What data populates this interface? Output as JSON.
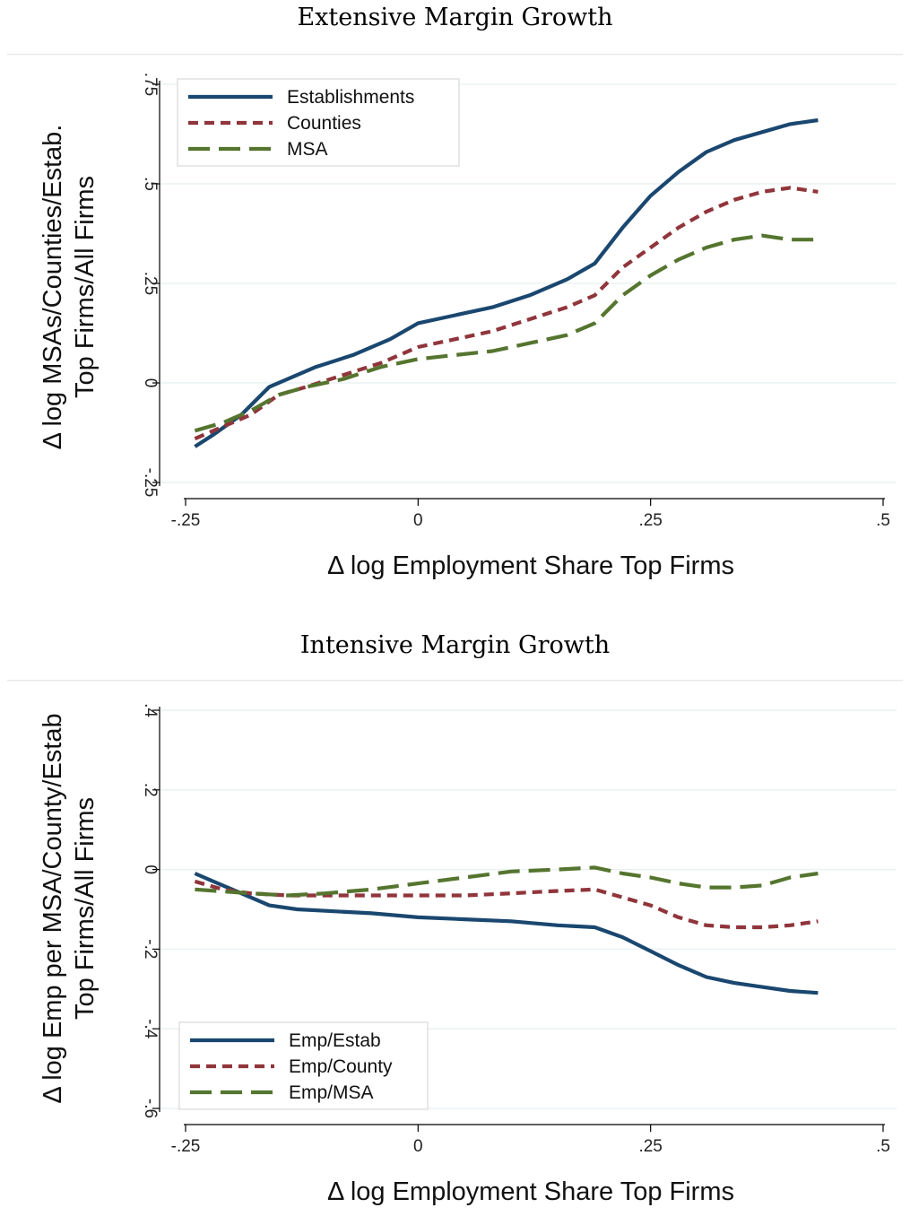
{
  "chart_data": [
    {
      "type": "line",
      "title": "Extensive Margin Growth",
      "xlabel": "Δ log Employment Share Top Firms",
      "ylabel_lines": [
        "Δ log MSAs/Counties/Estab.",
        "Top Firms/All Firms"
      ],
      "xlim": [
        -0.25,
        0.5
      ],
      "ylim": [
        -0.25,
        0.75
      ],
      "xticks": [
        -0.25,
        0,
        0.25,
        0.5
      ],
      "xtick_labels": [
        "-.25",
        "0",
        ".25",
        ".5"
      ],
      "yticks": [
        -0.25,
        0,
        0.25,
        0.5,
        0.75
      ],
      "ytick_labels": [
        "-.25",
        "0",
        ".25",
        ".5",
        ".75"
      ],
      "grid": true,
      "legend_position": "top-left",
      "series": [
        {
          "name": "Establishments",
          "color": "#1a476f",
          "dash": "solid",
          "points": [
            [
              -0.24,
              -0.16
            ],
            [
              -0.22,
              -0.13
            ],
            [
              -0.19,
              -0.08
            ],
            [
              -0.16,
              -0.01
            ],
            [
              -0.14,
              0.01
            ],
            [
              -0.11,
              0.04
            ],
            [
              -0.07,
              0.07
            ],
            [
              -0.03,
              0.11
            ],
            [
              0.0,
              0.15
            ],
            [
              0.04,
              0.17
            ],
            [
              0.08,
              0.19
            ],
            [
              0.12,
              0.22
            ],
            [
              0.16,
              0.26
            ],
            [
              0.19,
              0.3
            ],
            [
              0.22,
              0.39
            ],
            [
              0.25,
              0.47
            ],
            [
              0.28,
              0.53
            ],
            [
              0.31,
              0.58
            ],
            [
              0.34,
              0.61
            ],
            [
              0.37,
              0.63
            ],
            [
              0.4,
              0.65
            ],
            [
              0.43,
              0.66
            ]
          ]
        },
        {
          "name": "Counties",
          "color": "#90353b",
          "dash": "short",
          "points": [
            [
              -0.24,
              -0.14
            ],
            [
              -0.21,
              -0.11
            ],
            [
              -0.18,
              -0.08
            ],
            [
              -0.15,
              -0.03
            ],
            [
              -0.12,
              -0.01
            ],
            [
              -0.08,
              0.02
            ],
            [
              -0.04,
              0.05
            ],
            [
              0.0,
              0.09
            ],
            [
              0.04,
              0.11
            ],
            [
              0.08,
              0.13
            ],
            [
              0.12,
              0.16
            ],
            [
              0.16,
              0.19
            ],
            [
              0.19,
              0.22
            ],
            [
              0.22,
              0.29
            ],
            [
              0.25,
              0.34
            ],
            [
              0.28,
              0.39
            ],
            [
              0.31,
              0.43
            ],
            [
              0.34,
              0.46
            ],
            [
              0.37,
              0.48
            ],
            [
              0.4,
              0.49
            ],
            [
              0.43,
              0.48
            ]
          ]
        },
        {
          "name": "MSA",
          "color": "#55752f",
          "dash": "long",
          "points": [
            [
              -0.24,
              -0.12
            ],
            [
              -0.21,
              -0.1
            ],
            [
              -0.18,
              -0.07
            ],
            [
              -0.15,
              -0.03
            ],
            [
              -0.12,
              -0.01
            ],
            [
              -0.08,
              0.01
            ],
            [
              -0.04,
              0.04
            ],
            [
              0.0,
              0.06
            ],
            [
              0.04,
              0.07
            ],
            [
              0.08,
              0.08
            ],
            [
              0.12,
              0.1
            ],
            [
              0.16,
              0.12
            ],
            [
              0.19,
              0.15
            ],
            [
              0.22,
              0.22
            ],
            [
              0.25,
              0.27
            ],
            [
              0.28,
              0.31
            ],
            [
              0.31,
              0.34
            ],
            [
              0.34,
              0.36
            ],
            [
              0.37,
              0.37
            ],
            [
              0.4,
              0.36
            ],
            [
              0.43,
              0.36
            ]
          ]
        }
      ]
    },
    {
      "type": "line",
      "title": "Intensive Margin Growth",
      "xlabel": "Δ log Employment Share Top Firms",
      "ylabel_lines": [
        "Δ log Emp per MSA/County/Estab",
        "Top Firms/All Firms"
      ],
      "xlim": [
        -0.25,
        0.5
      ],
      "ylim": [
        -0.6,
        0.4
      ],
      "xticks": [
        -0.25,
        0,
        0.25,
        0.5
      ],
      "xtick_labels": [
        "-.25",
        "0",
        ".25",
        ".5"
      ],
      "yticks": [
        -0.6,
        -0.4,
        -0.2,
        0,
        0.2,
        0.4
      ],
      "ytick_labels": [
        "-.6",
        "-.4",
        "-.2",
        "0",
        ".2",
        ".4"
      ],
      "grid": true,
      "legend_position": "bottom-left",
      "series": [
        {
          "name": "Emp/Estab",
          "color": "#1a476f",
          "dash": "solid",
          "points": [
            [
              -0.24,
              -0.01
            ],
            [
              -0.22,
              -0.03
            ],
            [
              -0.19,
              -0.06
            ],
            [
              -0.16,
              -0.09
            ],
            [
              -0.13,
              -0.1
            ],
            [
              -0.09,
              -0.105
            ],
            [
              -0.05,
              -0.11
            ],
            [
              0.0,
              -0.12
            ],
            [
              0.05,
              -0.125
            ],
            [
              0.1,
              -0.13
            ],
            [
              0.15,
              -0.14
            ],
            [
              0.19,
              -0.145
            ],
            [
              0.22,
              -0.17
            ],
            [
              0.25,
              -0.205
            ],
            [
              0.28,
              -0.24
            ],
            [
              0.31,
              -0.27
            ],
            [
              0.34,
              -0.285
            ],
            [
              0.37,
              -0.295
            ],
            [
              0.4,
              -0.305
            ],
            [
              0.43,
              -0.31
            ]
          ]
        },
        {
          "name": "Emp/County",
          "color": "#90353b",
          "dash": "short",
          "points": [
            [
              -0.24,
              -0.03
            ],
            [
              -0.21,
              -0.05
            ],
            [
              -0.18,
              -0.06
            ],
            [
              -0.14,
              -0.065
            ],
            [
              -0.1,
              -0.065
            ],
            [
              -0.05,
              -0.065
            ],
            [
              0.0,
              -0.065
            ],
            [
              0.05,
              -0.065
            ],
            [
              0.1,
              -0.06
            ],
            [
              0.14,
              -0.055
            ],
            [
              0.19,
              -0.05
            ],
            [
              0.22,
              -0.07
            ],
            [
              0.25,
              -0.09
            ],
            [
              0.28,
              -0.12
            ],
            [
              0.31,
              -0.14
            ],
            [
              0.34,
              -0.145
            ],
            [
              0.37,
              -0.145
            ],
            [
              0.4,
              -0.14
            ],
            [
              0.43,
              -0.13
            ]
          ]
        },
        {
          "name": "Emp/MSA",
          "color": "#55752f",
          "dash": "long",
          "points": [
            [
              -0.24,
              -0.05
            ],
            [
              -0.21,
              -0.055
            ],
            [
              -0.18,
              -0.06
            ],
            [
              -0.14,
              -0.065
            ],
            [
              -0.1,
              -0.06
            ],
            [
              -0.05,
              -0.05
            ],
            [
              0.0,
              -0.035
            ],
            [
              0.05,
              -0.02
            ],
            [
              0.1,
              -0.005
            ],
            [
              0.15,
              0.0
            ],
            [
              0.19,
              0.005
            ],
            [
              0.22,
              -0.01
            ],
            [
              0.25,
              -0.02
            ],
            [
              0.28,
              -0.035
            ],
            [
              0.31,
              -0.045
            ],
            [
              0.34,
              -0.045
            ],
            [
              0.37,
              -0.04
            ],
            [
              0.4,
              -0.02
            ],
            [
              0.43,
              -0.01
            ]
          ]
        }
      ]
    }
  ]
}
